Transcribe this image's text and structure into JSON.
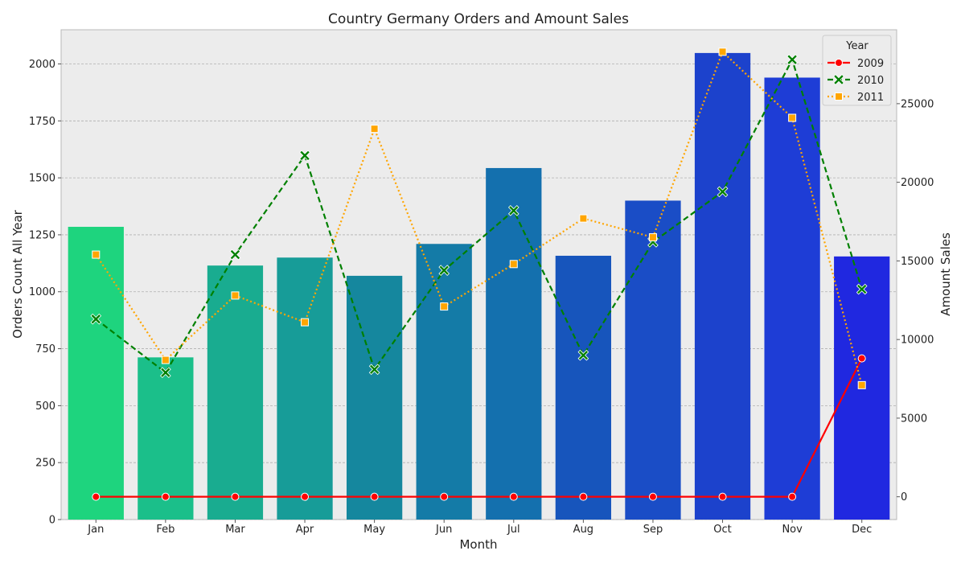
{
  "chart_data": {
    "type": "bar",
    "title": "Country Germany Orders and Amount Sales",
    "xlabel": "Month",
    "ylabel": "Orders Count All Year",
    "y2label": "Amount Sales",
    "categories": [
      "Jan",
      "Feb",
      "Mar",
      "Apr",
      "May",
      "Jun",
      "Jul",
      "Aug",
      "Sep",
      "Oct",
      "Nov",
      "Dec"
    ],
    "ylim": [
      0,
      2150
    ],
    "y2lim": [
      -1450,
      29700
    ],
    "yticks": [
      0,
      250,
      500,
      750,
      1000,
      1250,
      1500,
      1750,
      2000
    ],
    "y2ticks": [
      0,
      5000,
      10000,
      15000,
      20000,
      25000
    ],
    "grid": true,
    "legend": {
      "title": "Year",
      "placement": "top-right"
    },
    "bars": {
      "values": [
        1285,
        712,
        1115,
        1150,
        1070,
        1210,
        1543,
        1158,
        1400,
        2048,
        1940,
        1155
      ],
      "colors": [
        "#1ed47e",
        "#1bbf8a",
        "#19ac90",
        "#179c98",
        "#15879e",
        "#147ba7",
        "#1470ae",
        "#1755bc",
        "#1a4dc6",
        "#1c42cc",
        "#1e3dd6",
        "#2028e0"
      ]
    },
    "series": [
      {
        "name": "2009",
        "axis": "right",
        "color": "#ff0000",
        "line": "solid",
        "marker": "circle",
        "values": [
          0,
          0,
          0,
          0,
          0,
          0,
          0,
          0,
          0,
          0,
          0,
          8800
        ]
      },
      {
        "name": "2010",
        "axis": "right",
        "color": "#008000",
        "line": "dashed",
        "marker": "x",
        "values": [
          11300,
          7900,
          15400,
          21700,
          8100,
          14400,
          18200,
          9000,
          16200,
          19400,
          27800,
          13200
        ]
      },
      {
        "name": "2011",
        "axis": "right",
        "color": "#ffa500",
        "line": "dotted",
        "marker": "square",
        "values": [
          15400,
          8700,
          12800,
          11100,
          23400,
          12100,
          14800,
          17700,
          16500,
          28300,
          24100,
          7100
        ]
      }
    ]
  }
}
